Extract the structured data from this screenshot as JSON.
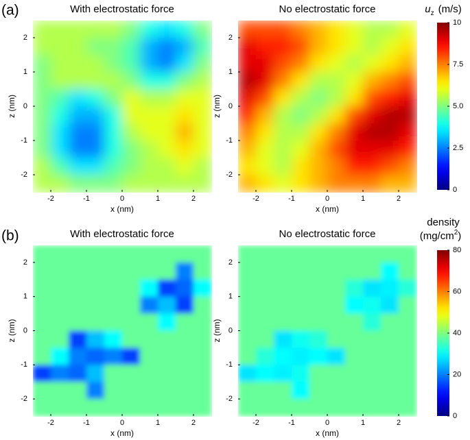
{
  "chart_data": [
    {
      "type": "heatmap",
      "panel_label": "(a)",
      "xlabel": "x (nm)",
      "ylabel": "z (nm)",
      "xlim": [
        -2.5,
        2.5
      ],
      "ylim": [
        -2.5,
        2.5
      ],
      "xticks": [
        -2,
        -1,
        0,
        1,
        2
      ],
      "yticks": [
        -2,
        -1,
        0,
        1,
        2
      ],
      "colormap": "jet",
      "plots": [
        {
          "title": "With electrostatic force",
          "values": [
            [
              5.5,
              5.5,
              5.5,
              5.5,
              5.5,
              5,
              4,
              3.5,
              4,
              5
            ],
            [
              5.5,
              5.5,
              5.5,
              5,
              5,
              4.5,
              3,
              2.5,
              3,
              4.5
            ],
            [
              5,
              5.5,
              5.5,
              5.5,
              5,
              4.5,
              3,
              2.5,
              3.5,
              5
            ],
            [
              5,
              5.5,
              5.5,
              5.5,
              5.5,
              5,
              4,
              4,
              5,
              5.5
            ],
            [
              5,
              4.5,
              3.5,
              4,
              5,
              6,
              5.5,
              5.5,
              6,
              6
            ],
            [
              5,
              4,
              3,
              3,
              4,
              6,
              6,
              6,
              6.5,
              6
            ],
            [
              5,
              3.5,
              2.5,
              2.5,
              4,
              5.5,
              6,
              6,
              7,
              6
            ],
            [
              5,
              3.5,
              2.5,
              2.5,
              4,
              5,
              5.5,
              6,
              6.5,
              6
            ],
            [
              5.5,
              4.5,
              3.5,
              3.5,
              4.5,
              5,
              5.5,
              5.5,
              6,
              5.5
            ],
            [
              5.5,
              5.5,
              5,
              5,
              5,
              5.5,
              5.5,
              5.5,
              5.5,
              5.5
            ]
          ]
        },
        {
          "title": "No electrostatic force",
          "values": [
            [
              8,
              8,
              8,
              7.5,
              7,
              6.5,
              6,
              5.5,
              5.5,
              6
            ],
            [
              9,
              8.5,
              8.5,
              8,
              7,
              6.5,
              6,
              5.5,
              6,
              6.5
            ],
            [
              9,
              9,
              8,
              7.5,
              6.5,
              6,
              5.5,
              6,
              6.5,
              7
            ],
            [
              9.5,
              9,
              7.5,
              6.5,
              5.5,
              5.5,
              6,
              7,
              7.5,
              8
            ],
            [
              9,
              8,
              6.5,
              5.5,
              5,
              5.5,
              6.5,
              8,
              8.5,
              9
            ],
            [
              8.5,
              7,
              5.5,
              5,
              5.5,
              6.5,
              8,
              9,
              9.5,
              9.5
            ],
            [
              7.5,
              6.5,
              5.5,
              5.5,
              6.5,
              7.5,
              9,
              9.5,
              9.5,
              9
            ],
            [
              7,
              6,
              5.5,
              6,
              7,
              8,
              9,
              9,
              9,
              8.5
            ],
            [
              6.5,
              6,
              5.5,
              6.5,
              7,
              7.5,
              8.5,
              8.5,
              8,
              7.5
            ],
            [
              7,
              6.5,
              6,
              6.5,
              7,
              7.5,
              7.5,
              7.5,
              7,
              7
            ]
          ]
        }
      ],
      "colorbar": {
        "label": {
          "symbol": "u",
          "subscript": "z",
          "unit": "(m/s)"
        },
        "clim": [
          0,
          10
        ],
        "ticks": [
          0,
          {
            "value": 2.5,
            "label": "2.5"
          },
          {
            "value": 5,
            "label": "5.0"
          },
          {
            "value": 7.5,
            "label": "7.5"
          },
          10
        ]
      }
    },
    {
      "type": "heatmap",
      "panel_label": "(b)",
      "xlabel": "x (nm)",
      "ylabel": "z (nm)",
      "xlim": [
        -2.5,
        2.5
      ],
      "ylim": [
        -2.5,
        2.5
      ],
      "xticks": [
        -2,
        -1,
        0,
        1,
        2
      ],
      "yticks": [
        -2,
        -1,
        0,
        1,
        2
      ],
      "colormap": "jet",
      "plots": [
        {
          "title": "With electrostatic force",
          "values": [
            [
              38,
              38,
              38,
              38,
              38,
              38,
              38,
              38,
              38,
              38
            ],
            [
              38,
              38,
              38,
              38,
              38,
              38,
              38,
              38,
              20,
              38
            ],
            [
              38,
              38,
              38,
              38,
              38,
              38,
              30,
              15,
              18,
              30
            ],
            [
              38,
              38,
              38,
              38,
              38,
              38,
              20,
              25,
              15,
              38
            ],
            [
              38,
              38,
              38,
              38,
              38,
              38,
              38,
              30,
              38,
              38
            ],
            [
              38,
              38,
              15,
              25,
              30,
              38,
              38,
              38,
              38,
              38
            ],
            [
              38,
              30,
              20,
              18,
              20,
              15,
              38,
              38,
              38,
              38
            ],
            [
              15,
              20,
              18,
              25,
              38,
              38,
              38,
              38,
              38,
              38
            ],
            [
              38,
              38,
              38,
              20,
              38,
              38,
              38,
              38,
              38,
              38
            ],
            [
              38,
              38,
              38,
              38,
              38,
              38,
              38,
              38,
              38,
              38
            ]
          ]
        },
        {
          "title": "No electrostatic force",
          "values": [
            [
              38,
              38,
              38,
              38,
              38,
              38,
              38,
              38,
              38,
              38
            ],
            [
              38,
              38,
              38,
              38,
              38,
              38,
              38,
              38,
              30,
              38
            ],
            [
              38,
              38,
              38,
              38,
              38,
              38,
              33,
              28,
              29,
              33
            ],
            [
              38,
              38,
              38,
              38,
              38,
              38,
              30,
              31,
              28,
              38
            ],
            [
              38,
              38,
              38,
              38,
              38,
              38,
              38,
              33,
              38,
              38
            ],
            [
              38,
              38,
              28,
              31,
              33,
              38,
              38,
              38,
              38,
              38
            ],
            [
              38,
              33,
              30,
              29,
              30,
              28,
              38,
              38,
              38,
              38
            ],
            [
              28,
              30,
              29,
              31,
              38,
              38,
              38,
              38,
              38,
              38
            ],
            [
              38,
              38,
              38,
              30,
              38,
              38,
              38,
              38,
              38,
              38
            ],
            [
              38,
              38,
              38,
              38,
              38,
              38,
              38,
              38,
              38,
              38
            ]
          ]
        }
      ],
      "colorbar": {
        "label": {
          "name": "density",
          "unit": "(mg/cm",
          "superscript": "2",
          "close": ")"
        },
        "clim": [
          0,
          80
        ],
        "ticks": [
          0,
          20,
          40,
          60,
          80
        ]
      }
    }
  ]
}
